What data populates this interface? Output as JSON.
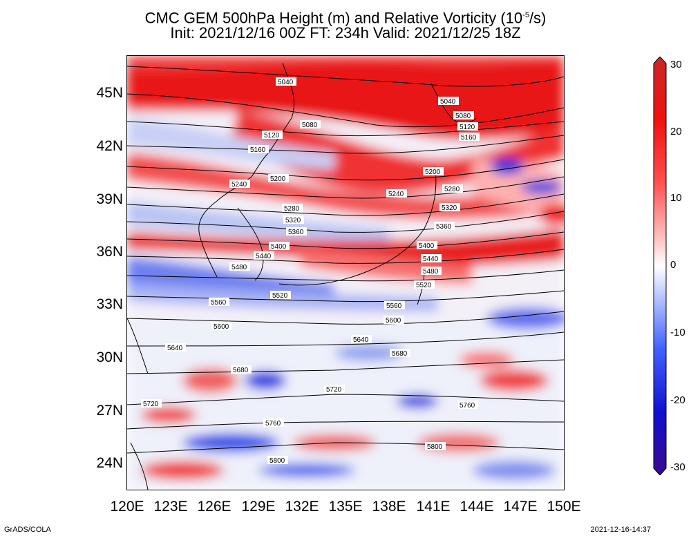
{
  "title": {
    "line1_prefix": "CMC GEM 500hPa Height (m) and Relative Vorticity (10",
    "line1_exp": "-5",
    "line1_suffix": "/s)",
    "line2": "Init: 2021/12/16 00Z  FT: 234h  Valid: 2021/12/25 18Z"
  },
  "lat_labels": [
    "45N",
    "42N",
    "39N",
    "36N",
    "33N",
    "30N",
    "27N",
    "24N"
  ],
  "lon_labels": [
    "120E",
    "123E",
    "126E",
    "129E",
    "132E",
    "135E",
    "138E",
    "141E",
    "144E",
    "147E",
    "150E"
  ],
  "colorbar": {
    "labels": [
      "30",
      "20",
      "10",
      "0",
      "-10",
      "-20",
      "-30"
    ],
    "colors": [
      "#c82828",
      "#f01010",
      "#ff5050",
      "#ffa0a0",
      "#ffffff",
      "#a0b4ff",
      "#4060ff",
      "#1010d0",
      "#3a0a8c"
    ]
  },
  "contours": [
    "5040",
    "5080",
    "5120",
    "5160",
    "5200",
    "5240",
    "5280",
    "5320",
    "5360",
    "5400",
    "5440",
    "5480",
    "5520",
    "5560",
    "5600",
    "5640",
    "5680",
    "5720",
    "5760",
    "5800"
  ],
  "footer": {
    "left": "GrADS/COLA",
    "right": "2021-12-16-14:37"
  }
}
